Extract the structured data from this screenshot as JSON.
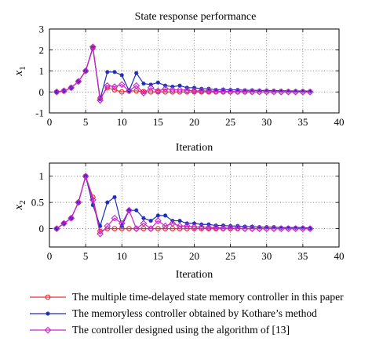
{
  "figure_title": "State response performance",
  "colors": {
    "red": "#e8303a",
    "blue": "#1d2fb8",
    "magenta": "#cc22cc"
  },
  "chart_data": [
    {
      "type": "line",
      "title": "State response performance",
      "xlabel": "Iteration",
      "ylabel": "x",
      "ylabel_sub": "1",
      "xlim": [
        0,
        40
      ],
      "ylim": [
        -1,
        3
      ],
      "xticks": [
        "0",
        "5",
        "10",
        "15",
        "20",
        "25",
        "30",
        "35",
        "40"
      ],
      "yticks": [
        "-1",
        "0",
        "1",
        "2",
        "3"
      ],
      "grid": true,
      "x": [
        1,
        2,
        3,
        4,
        5,
        6,
        7,
        8,
        9,
        10,
        11,
        12,
        13,
        14,
        15,
        16,
        17,
        18,
        19,
        20,
        21,
        22,
        23,
        24,
        25,
        26,
        27,
        28,
        29,
        30,
        31,
        32,
        33,
        34,
        35,
        36
      ],
      "series": [
        {
          "name": "The multiple time-delayed state memory controller in this paper",
          "color": "red",
          "marker": "circle",
          "values": [
            0,
            0.05,
            0.2,
            0.5,
            1.0,
            2.1,
            -0.3,
            0.2,
            0.1,
            0,
            0.05,
            0.05,
            0.02,
            0,
            0,
            0,
            0,
            0,
            0,
            0,
            0,
            0,
            0,
            0,
            0,
            0,
            0,
            0,
            0,
            0,
            0,
            0,
            0,
            0,
            0,
            0
          ]
        },
        {
          "name": "The memoryless controller obtained by Kothare’s method",
          "color": "blue",
          "marker": "star",
          "values": [
            0,
            0.05,
            0.2,
            0.5,
            1.0,
            2.1,
            -0.35,
            0.95,
            0.95,
            0.8,
            0.05,
            0.9,
            0.4,
            0.35,
            0.45,
            0.3,
            0.25,
            0.3,
            0.2,
            0.2,
            0.15,
            0.15,
            0.1,
            0.12,
            0.1,
            0.1,
            0.08,
            0.08,
            0.07,
            0.07,
            0.06,
            0.06,
            0.05,
            0.05,
            0.05,
            0.04
          ]
        },
        {
          "name": "The controller designed using the algorithm of [13]",
          "color": "magenta",
          "marker": "diamond",
          "values": [
            0,
            0.05,
            0.2,
            0.5,
            1.0,
            2.15,
            -0.4,
            0.3,
            0.25,
            0.35,
            0.05,
            0.3,
            -0.05,
            0.2,
            0.05,
            0.15,
            0.1,
            0.1,
            0.08,
            0.05,
            0.05,
            0.05,
            0.03,
            0.03,
            0.02,
            0.02,
            0.02,
            0.01,
            0.01,
            0.01,
            0.01,
            0,
            0,
            0,
            0,
            0
          ]
        }
      ]
    },
    {
      "type": "line",
      "title": "",
      "xlabel": "Iteration",
      "ylabel": "x",
      "ylabel_sub": "2",
      "xlim": [
        0,
        40
      ],
      "ylim": [
        -0.35,
        1.25
      ],
      "xticks": [
        "0",
        "5",
        "10",
        "15",
        "20",
        "25",
        "30",
        "35",
        "40"
      ],
      "yticks": [
        "0",
        "0.5",
        "1"
      ],
      "ytick_values": [
        0,
        0.5,
        1
      ],
      "grid": true,
      "x": [
        1,
        2,
        3,
        4,
        5,
        6,
        7,
        8,
        9,
        10,
        11,
        12,
        13,
        14,
        15,
        16,
        17,
        18,
        19,
        20,
        21,
        22,
        23,
        24,
        25,
        26,
        27,
        28,
        29,
        30,
        31,
        32,
        33,
        34,
        35,
        36
      ],
      "series": [
        {
          "name": "The multiple time-delayed state memory controller in this paper",
          "color": "red",
          "marker": "circle",
          "values": [
            0,
            0.1,
            0.2,
            0.5,
            1.0,
            0.6,
            -0.05,
            0,
            0,
            0,
            0,
            0,
            0,
            0,
            0,
            0,
            0,
            0,
            0,
            0,
            0,
            0,
            0,
            0,
            0,
            0,
            0,
            0,
            0,
            0,
            0,
            0,
            0,
            0,
            0,
            0
          ]
        },
        {
          "name": "The memoryless controller obtained by Kothare’s method",
          "color": "blue",
          "marker": "star",
          "values": [
            0,
            0.1,
            0.2,
            0.5,
            1.0,
            0.45,
            0.05,
            0.5,
            0.6,
            0.05,
            0.35,
            0.35,
            0.2,
            0.15,
            0.25,
            0.25,
            0.15,
            0.15,
            0.1,
            0.1,
            0.08,
            0.08,
            0.06,
            0.06,
            0.05,
            0.05,
            0.04,
            0.04,
            0.03,
            0.03,
            0.03,
            0.02,
            0.02,
            0.02,
            0.02,
            0.01
          ]
        },
        {
          "name": "The controller designed using the algorithm of [13]",
          "color": "magenta",
          "marker": "diamond",
          "values": [
            0,
            0.1,
            0.2,
            0.5,
            1.0,
            0.55,
            -0.1,
            0.05,
            0.2,
            0.1,
            0.35,
            0.0,
            0.1,
            0.0,
            0.15,
            0.05,
            0.1,
            0.05,
            0.05,
            0.03,
            0.03,
            0.02,
            0.02,
            0.01,
            0.01,
            0.01,
            0,
            0,
            0,
            0,
            0,
            0,
            0,
            0,
            0,
            0
          ]
        }
      ]
    }
  ],
  "legend": [
    {
      "label": "The multiple time-delayed state memory controller in this paper",
      "color": "red",
      "marker": "circle"
    },
    {
      "label": "The memoryless controller obtained by Kothare’s method",
      "color": "blue",
      "marker": "star"
    },
    {
      "label": "The controller designed using the algorithm of [13]",
      "color": "magenta",
      "marker": "diamond"
    }
  ]
}
